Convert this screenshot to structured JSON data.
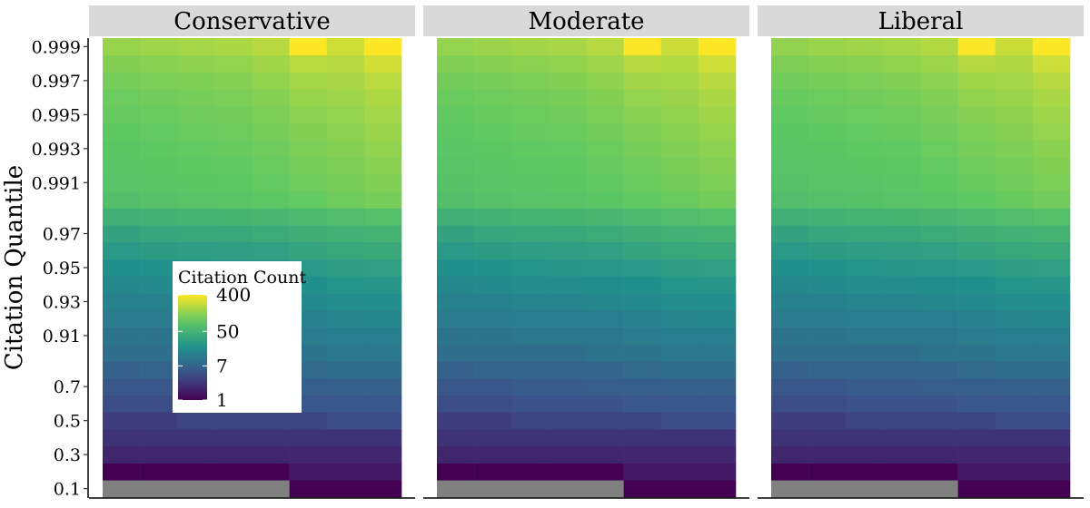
{
  "chart_data": {
    "type": "heatmap",
    "ylabel": "Citation Quantile",
    "legend": {
      "title": "Citation Count",
      "scale": "log",
      "breaks": [
        "400",
        "50",
        "7",
        "1"
      ],
      "break_values": [
        400,
        50,
        7,
        1
      ],
      "placement": "inside-left",
      "colors": [
        "#440154",
        "#3b528b",
        "#21908c",
        "#5dc863",
        "#fde725"
      ]
    },
    "na_color": "#808080",
    "grid": false,
    "y_tick_labels": [
      "0.1",
      "0.3",
      "0.5",
      "0.7",
      "0.91",
      "0.93",
      "0.95",
      "0.97",
      "0.991",
      "0.993",
      "0.995",
      "0.997",
      "0.999"
    ],
    "rows": [
      "0.1",
      "0.2",
      "0.3",
      "0.4",
      "0.5",
      "0.6",
      "0.7",
      "0.8",
      "0.9",
      "0.91",
      "0.92",
      "0.93",
      "0.94",
      "0.95",
      "0.96",
      "0.97",
      "0.98",
      "0.99",
      "0.991",
      "0.992",
      "0.993",
      "0.994",
      "0.995",
      "0.996",
      "0.997",
      "0.998",
      "0.999"
    ],
    "columns": 8,
    "panels": [
      {
        "name": "Conservative",
        "values": [
          [
            null,
            null,
            null,
            null,
            null,
            1,
            1,
            1
          ],
          [
            1,
            1,
            1,
            1,
            1,
            1.5,
            1.5,
            1.5
          ],
          [
            2,
            2,
            2,
            2,
            2,
            2,
            2,
            2
          ],
          [
            2.5,
            2.5,
            2.5,
            2.5,
            2.5,
            2.5,
            2.5,
            2.5
          ],
          [
            3,
            3,
            3.5,
            3.5,
            3.5,
            3.5,
            4,
            4
          ],
          [
            4,
            4,
            4.5,
            4.5,
            4.5,
            5,
            5,
            5
          ],
          [
            5,
            5,
            5.5,
            5.5,
            6,
            6,
            6.5,
            6.5
          ],
          [
            6.5,
            7,
            7,
            7,
            7.5,
            8,
            8.5,
            8.5
          ],
          [
            9,
            9,
            9,
            9,
            10,
            10,
            11,
            11
          ],
          [
            10,
            10,
            11,
            11,
            11,
            12,
            13,
            13
          ],
          [
            12,
            12,
            13,
            13,
            13,
            14,
            15,
            16
          ],
          [
            14,
            14,
            15,
            15,
            16,
            17,
            18,
            19
          ],
          [
            16,
            17,
            18,
            18,
            19,
            20,
            22,
            23
          ],
          [
            20,
            21,
            22,
            23,
            24,
            25,
            28,
            30
          ],
          [
            25,
            27,
            28,
            29,
            30,
            33,
            36,
            38
          ],
          [
            32,
            35,
            36,
            37,
            40,
            43,
            47,
            50
          ],
          [
            45,
            48,
            50,
            52,
            55,
            60,
            65,
            72
          ],
          [
            70,
            75,
            80,
            82,
            88,
            95,
            105,
            115
          ],
          [
            78,
            82,
            85,
            88,
            95,
            105,
            115,
            125
          ],
          [
            82,
            86,
            90,
            93,
            100,
            112,
            122,
            135
          ],
          [
            86,
            90,
            95,
            98,
            106,
            120,
            130,
            145
          ],
          [
            90,
            95,
            100,
            104,
            113,
            128,
            140,
            158
          ],
          [
            96,
            100,
            106,
            110,
            120,
            140,
            150,
            172
          ],
          [
            102,
            108,
            113,
            118,
            130,
            155,
            165,
            190
          ],
          [
            112,
            118,
            124,
            130,
            145,
            175,
            180,
            215
          ],
          [
            128,
            135,
            142,
            150,
            168,
            215,
            205,
            265
          ],
          [
            155,
            165,
            175,
            185,
            210,
            400,
            260,
            400
          ]
        ]
      },
      {
        "name": "Moderate",
        "values": [
          [
            null,
            null,
            null,
            null,
            null,
            1,
            1,
            1
          ],
          [
            1,
            1,
            1,
            1,
            1,
            1.5,
            1.5,
            1.5
          ],
          [
            2,
            2,
            2,
            2,
            2,
            2,
            2,
            2
          ],
          [
            2.5,
            2.5,
            2.5,
            2.5,
            2.5,
            2.5,
            2.5,
            2.5
          ],
          [
            3,
            3,
            3.5,
            3.5,
            3.5,
            3.5,
            4,
            4
          ],
          [
            4,
            4,
            4.5,
            4.5,
            4.5,
            5,
            5,
            5
          ],
          [
            5,
            5,
            5.5,
            5.5,
            6,
            6,
            6.5,
            6.5
          ],
          [
            6.5,
            7,
            7,
            7,
            7.5,
            8,
            8.5,
            8.5
          ],
          [
            9,
            9,
            9,
            9,
            10,
            10,
            11,
            11
          ],
          [
            10,
            10,
            11,
            11,
            11,
            12,
            13,
            13
          ],
          [
            12,
            12,
            13,
            13,
            13,
            14,
            15,
            16
          ],
          [
            14,
            14,
            15,
            15,
            16,
            17,
            18,
            19
          ],
          [
            16,
            17,
            18,
            18,
            19,
            20,
            22,
            23
          ],
          [
            20,
            21,
            22,
            23,
            24,
            25,
            28,
            30
          ],
          [
            25,
            27,
            28,
            29,
            30,
            33,
            36,
            38
          ],
          [
            32,
            35,
            36,
            37,
            40,
            43,
            47,
            50
          ],
          [
            45,
            48,
            50,
            52,
            55,
            60,
            65,
            72
          ],
          [
            70,
            75,
            78,
            80,
            85,
            92,
            100,
            110
          ],
          [
            76,
            80,
            83,
            86,
            92,
            100,
            110,
            120
          ],
          [
            80,
            84,
            88,
            90,
            97,
            107,
            117,
            130
          ],
          [
            84,
            88,
            92,
            95,
            103,
            115,
            125,
            140
          ],
          [
            88,
            92,
            97,
            100,
            110,
            123,
            135,
            152
          ],
          [
            94,
            98,
            103,
            108,
            118,
            135,
            145,
            168
          ],
          [
            100,
            105,
            110,
            115,
            128,
            150,
            160,
            185
          ],
          [
            110,
            115,
            120,
            128,
            142,
            170,
            175,
            210
          ],
          [
            125,
            132,
            140,
            148,
            165,
            210,
            200,
            260
          ],
          [
            150,
            160,
            170,
            180,
            205,
            390,
            250,
            400
          ]
        ]
      },
      {
        "name": "Liberal",
        "values": [
          [
            null,
            null,
            null,
            null,
            null,
            1,
            1,
            1
          ],
          [
            1,
            1,
            1,
            1,
            1,
            1.5,
            1.5,
            1.5
          ],
          [
            2,
            2,
            2,
            2,
            2,
            2,
            2,
            2
          ],
          [
            2.5,
            2.5,
            2.5,
            2.5,
            2.5,
            2.5,
            2.5,
            2.5
          ],
          [
            3,
            3,
            3.5,
            3.5,
            3.5,
            3.5,
            4,
            4
          ],
          [
            4,
            4,
            4.5,
            4.5,
            4.5,
            5,
            5,
            5
          ],
          [
            5,
            5,
            5.5,
            5.5,
            6,
            6,
            6.5,
            6.5
          ],
          [
            6.5,
            7,
            7,
            7,
            7.5,
            8,
            8.5,
            8.5
          ],
          [
            9,
            9,
            9,
            9,
            10,
            10,
            11,
            11
          ],
          [
            10,
            10,
            11,
            11,
            11,
            12,
            13,
            13
          ],
          [
            12,
            12,
            13,
            13,
            13,
            14,
            15,
            16
          ],
          [
            14,
            14,
            15,
            15,
            16,
            17,
            18,
            19
          ],
          [
            16,
            17,
            18,
            18,
            19,
            20,
            22,
            23
          ],
          [
            20,
            21,
            22,
            23,
            24,
            25,
            28,
            30
          ],
          [
            25,
            27,
            28,
            29,
            30,
            33,
            36,
            38
          ],
          [
            32,
            35,
            36,
            37,
            40,
            43,
            47,
            50
          ],
          [
            45,
            48,
            50,
            52,
            55,
            60,
            65,
            72
          ],
          [
            68,
            72,
            76,
            78,
            82,
            90,
            98,
            108
          ],
          [
            74,
            78,
            81,
            84,
            90,
            98,
            108,
            118
          ],
          [
            78,
            82,
            86,
            88,
            95,
            105,
            115,
            128
          ],
          [
            82,
            86,
            90,
            93,
            101,
            113,
            123,
            138
          ],
          [
            86,
            90,
            95,
            98,
            108,
            121,
            133,
            150
          ],
          [
            92,
            96,
            101,
            106,
            116,
            133,
            143,
            165
          ],
          [
            98,
            103,
            108,
            113,
            126,
            148,
            158,
            182
          ],
          [
            108,
            113,
            118,
            126,
            140,
            168,
            172,
            205
          ],
          [
            122,
            130,
            138,
            146,
            162,
            205,
            195,
            255
          ],
          [
            148,
            158,
            168,
            178,
            200,
            380,
            245,
            395
          ]
        ]
      }
    ]
  }
}
